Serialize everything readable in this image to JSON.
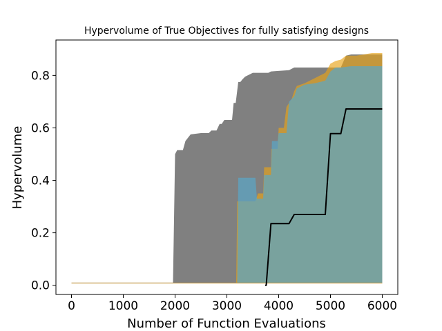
{
  "chart_data": {
    "type": "area",
    "title": "Hypervolume of True Objectives for fully satisfying designs",
    "xlabel": "Number of Function Evaluations",
    "ylabel": "Hypervolume",
    "xlim": [
      -300,
      6300
    ],
    "ylim": [
      -0.035,
      0.935
    ],
    "xticks": [
      0,
      1000,
      2000,
      3000,
      4000,
      5000,
      6000
    ],
    "xtick_labels": [
      "0",
      "1000",
      "2000",
      "3000",
      "4000",
      "5000",
      "6000"
    ],
    "yticks": [
      0.0,
      0.2,
      0.4,
      0.6,
      0.8
    ],
    "ytick_labels": [
      "0.0",
      "0.2",
      "0.4",
      "0.6",
      "0.8"
    ],
    "grid": false,
    "legend": "top (clipped)",
    "series": [
      {
        "kind": "band",
        "color": "#808080",
        "opacity": 1.0,
        "upper": [
          [
            0,
            0.01
          ],
          [
            1960,
            0.01
          ],
          [
            2000,
            0.5
          ],
          [
            2040,
            0.515
          ],
          [
            2150,
            0.515
          ],
          [
            2200,
            0.55
          ],
          [
            2300,
            0.575
          ],
          [
            2500,
            0.58
          ],
          [
            2650,
            0.58
          ],
          [
            2700,
            0.59
          ],
          [
            2800,
            0.59
          ],
          [
            2860,
            0.615
          ],
          [
            2900,
            0.615
          ],
          [
            2950,
            0.63
          ],
          [
            3100,
            0.63
          ],
          [
            3130,
            0.695
          ],
          [
            3170,
            0.695
          ],
          [
            3220,
            0.775
          ],
          [
            3260,
            0.775
          ],
          [
            3300,
            0.785
          ],
          [
            3350,
            0.795
          ],
          [
            3400,
            0.8
          ],
          [
            3500,
            0.81
          ],
          [
            3800,
            0.81
          ],
          [
            3850,
            0.815
          ],
          [
            4200,
            0.82
          ],
          [
            4300,
            0.83
          ],
          [
            5200,
            0.83
          ],
          [
            5300,
            0.875
          ],
          [
            5400,
            0.88
          ],
          [
            6000,
            0.88
          ]
        ],
        "lower": [
          [
            0,
            0.007
          ],
          [
            6000,
            0.007
          ]
        ]
      },
      {
        "kind": "band",
        "color": "#e8a317",
        "opacity": 0.65,
        "upper": [
          [
            0,
            0.01
          ],
          [
            3180,
            0.01
          ],
          [
            3200,
            0.32
          ],
          [
            3550,
            0.32
          ],
          [
            3600,
            0.35
          ],
          [
            3700,
            0.35
          ],
          [
            3720,
            0.45
          ],
          [
            3850,
            0.45
          ],
          [
            3860,
            0.52
          ],
          [
            3980,
            0.52
          ],
          [
            4000,
            0.6
          ],
          [
            4100,
            0.6
          ],
          [
            4150,
            0.68
          ],
          [
            4250,
            0.71
          ],
          [
            4300,
            0.74
          ],
          [
            4350,
            0.76
          ],
          [
            4500,
            0.77
          ],
          [
            4700,
            0.79
          ],
          [
            4900,
            0.81
          ],
          [
            5000,
            0.845
          ],
          [
            5100,
            0.855
          ],
          [
            5200,
            0.86
          ],
          [
            5300,
            0.875
          ],
          [
            5500,
            0.875
          ],
          [
            5800,
            0.885
          ],
          [
            6000,
            0.885
          ]
        ],
        "lower": [
          [
            0,
            0.007
          ],
          [
            6000,
            0.007
          ]
        ]
      },
      {
        "kind": "band",
        "color": "#5aa6c8",
        "opacity": 0.7,
        "upper": [
          [
            0,
            0.01
          ],
          [
            3200,
            0.01
          ],
          [
            3220,
            0.41
          ],
          [
            3550,
            0.41
          ],
          [
            3580,
            0.33
          ],
          [
            3700,
            0.33
          ],
          [
            3720,
            0.42
          ],
          [
            3850,
            0.42
          ],
          [
            3870,
            0.55
          ],
          [
            3980,
            0.55
          ],
          [
            4000,
            0.58
          ],
          [
            4150,
            0.58
          ],
          [
            4200,
            0.7
          ],
          [
            4300,
            0.72
          ],
          [
            4350,
            0.75
          ],
          [
            4500,
            0.765
          ],
          [
            4700,
            0.77
          ],
          [
            4900,
            0.78
          ],
          [
            5000,
            0.815
          ],
          [
            5100,
            0.83
          ],
          [
            5200,
            0.83
          ],
          [
            5400,
            0.835
          ],
          [
            6000,
            0.835
          ]
        ],
        "lower": [
          [
            0,
            0.01
          ],
          [
            6000,
            0.01
          ]
        ]
      },
      {
        "kind": "line",
        "color": "#000000",
        "points": [
          [
            3740,
            0.0
          ],
          [
            3760,
            0.0
          ],
          [
            3850,
            0.235
          ],
          [
            4200,
            0.235
          ],
          [
            4300,
            0.27
          ],
          [
            4900,
            0.27
          ],
          [
            5000,
            0.578
          ],
          [
            5200,
            0.578
          ],
          [
            5300,
            0.672
          ],
          [
            6000,
            0.672
          ]
        ]
      }
    ]
  }
}
